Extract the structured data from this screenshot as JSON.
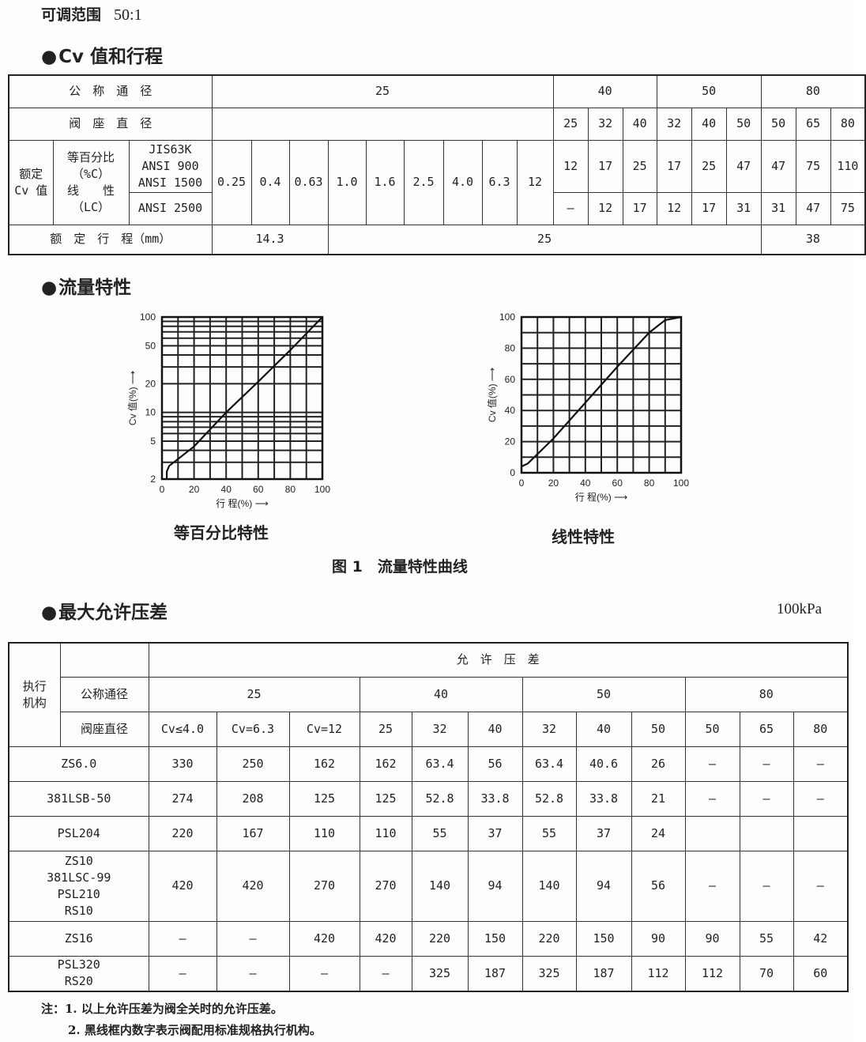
{
  "range": {
    "label": "可调范围",
    "value": "50:1"
  },
  "cv_section": {
    "title": "Cv 值和行程",
    "rows": [
      [
        {
          "t": "公　称　通　径",
          "cs": 3
        },
        {
          "t": "25",
          "cs": 9
        },
        {
          "t": "40",
          "cs": 3
        },
        {
          "t": "50",
          "cs": 3
        },
        {
          "t": "80",
          "cs": 3
        }
      ],
      [
        {
          "t": "阀　座　直　径",
          "cs": 3
        },
        {
          "t": "",
          "cs": 9
        },
        {
          "t": "25"
        },
        {
          "t": "32"
        },
        {
          "t": "40"
        },
        {
          "t": "32"
        },
        {
          "t": "40"
        },
        {
          "t": "50"
        },
        {
          "t": "50"
        },
        {
          "t": "65"
        },
        {
          "t": "80"
        }
      ],
      [
        {
          "t": "额定\nCv 值",
          "rs": 2
        },
        {
          "t": "等百分比\n（%C）\n线　　性\n（LC）",
          "rs": 2
        },
        {
          "t": "JIS63K\nANSI 900\nANSI 1500"
        },
        {
          "t": "0.25",
          "rs": 2
        },
        {
          "t": "0.4",
          "rs": 2
        },
        {
          "t": "0.63",
          "rs": 2
        },
        {
          "t": "1.0",
          "rs": 2
        },
        {
          "t": "1.6",
          "rs": 2
        },
        {
          "t": "2.5",
          "rs": 2
        },
        {
          "t": "4.0",
          "rs": 2
        },
        {
          "t": "6.3",
          "rs": 2
        },
        {
          "t": "12",
          "rs": 2
        },
        {
          "t": "12"
        },
        {
          "t": "17"
        },
        {
          "t": "25"
        },
        {
          "t": "17"
        },
        {
          "t": "25"
        },
        {
          "t": "47"
        },
        {
          "t": "47"
        },
        {
          "t": "75"
        },
        {
          "t": "110"
        }
      ],
      [
        {
          "t": "ANSI 2500"
        },
        {
          "t": "—"
        },
        {
          "t": "12"
        },
        {
          "t": "17"
        },
        {
          "t": "12"
        },
        {
          "t": "17"
        },
        {
          "t": "31"
        },
        {
          "t": "31"
        },
        {
          "t": "47"
        },
        {
          "t": "75"
        }
      ],
      [
        {
          "t": "额　定　行　程（mm）",
          "cs": 3
        },
        {
          "t": "14.3",
          "cs": 3
        },
        {
          "t": "25",
          "cs": 12
        },
        {
          "t": "38",
          "cs": 3
        }
      ]
    ]
  },
  "flow_section": {
    "title": "流量特性",
    "figure_caption": "图 1　流量特性曲线",
    "charts": [
      {
        "caption": "等百分比特性",
        "type": "line",
        "y_scale": "log",
        "ylim": [
          2,
          100
        ],
        "xlim": [
          0,
          100
        ],
        "ylabel": "Cv 值(%) ⟶",
        "xlabel": "行 程(%) ⟶",
        "yticks": [
          2,
          5,
          10,
          20,
          50,
          100
        ],
        "xticks": [
          0,
          20,
          40,
          60,
          80,
          100
        ],
        "grid": true,
        "points": [
          [
            3,
            2
          ],
          [
            3,
            2.4
          ],
          [
            4.5,
            2.75
          ],
          [
            20,
            4.4
          ],
          [
            40,
            10
          ],
          [
            60,
            21
          ],
          [
            80,
            45
          ],
          [
            100,
            100
          ]
        ]
      },
      {
        "caption": "线性特性",
        "type": "line",
        "y_scale": "linear",
        "ylim": [
          0,
          100
        ],
        "xlim": [
          0,
          100
        ],
        "ylabel": "Cv 值(%) ⟶",
        "xlabel": "行 程(%) ⟶",
        "yticks": [
          0,
          20,
          40,
          60,
          80,
          100
        ],
        "xticks": [
          0,
          20,
          40,
          60,
          80,
          100
        ],
        "grid": true,
        "points": [
          [
            0,
            4
          ],
          [
            4,
            6
          ],
          [
            20,
            22
          ],
          [
            40,
            45
          ],
          [
            60,
            68
          ],
          [
            80,
            90
          ],
          [
            90,
            98
          ],
          [
            100,
            100
          ]
        ]
      }
    ]
  },
  "dp_section": {
    "title": "最大允许压差",
    "unit": "100kPa",
    "rows": [
      [
        {
          "t": "执行\n机构",
          "rs": 3
        },
        {
          "t": ""
        },
        {
          "t": "允　许　压　差",
          "cs": 12
        }
      ],
      [
        {
          "t": "公称通径"
        },
        {
          "t": "25",
          "cs": 3
        },
        {
          "t": "40",
          "cs": 3
        },
        {
          "t": "50",
          "cs": 3
        },
        {
          "t": "80",
          "cs": 3
        }
      ],
      [
        {
          "t": "阀座直径"
        },
        {
          "t": "Cv≤4.0"
        },
        {
          "t": "Cv=6.3"
        },
        {
          "t": "Cv=12"
        },
        {
          "t": "25"
        },
        {
          "t": "32"
        },
        {
          "t": "40"
        },
        {
          "t": "32"
        },
        {
          "t": "40"
        },
        {
          "t": "50"
        },
        {
          "t": "50"
        },
        {
          "t": "65"
        },
        {
          "t": "80"
        }
      ],
      [
        {
          "t": "ZS6.0",
          "cs": 2
        },
        {
          "t": "330"
        },
        {
          "t": "250"
        },
        {
          "t": "162"
        },
        {
          "t": "162"
        },
        {
          "t": "63.4"
        },
        {
          "t": "56"
        },
        {
          "t": "63.4"
        },
        {
          "t": "40.6"
        },
        {
          "t": "26"
        },
        {
          "t": "—"
        },
        {
          "t": "—"
        },
        {
          "t": "—"
        }
      ],
      [
        {
          "t": "381LSB-50",
          "cs": 2
        },
        {
          "t": "274"
        },
        {
          "t": "208"
        },
        {
          "t": "125"
        },
        {
          "t": "125"
        },
        {
          "t": "52.8"
        },
        {
          "t": "33.8"
        },
        {
          "t": "52.8"
        },
        {
          "t": "33.8"
        },
        {
          "t": "21"
        },
        {
          "t": "—"
        },
        {
          "t": "—"
        },
        {
          "t": "—"
        }
      ],
      [
        {
          "t": "PSL204",
          "cs": 2
        },
        {
          "t": "220"
        },
        {
          "t": "167"
        },
        {
          "t": "110"
        },
        {
          "t": "110"
        },
        {
          "t": "55"
        },
        {
          "t": "37"
        },
        {
          "t": "55"
        },
        {
          "t": "37"
        },
        {
          "t": "24"
        },
        {
          "t": ""
        },
        {
          "t": ""
        },
        {
          "t": ""
        }
      ],
      [
        {
          "t": "ZS10\n381LSC-99\nPSL210\nRS10",
          "cs": 2
        },
        {
          "t": "420"
        },
        {
          "t": "420"
        },
        {
          "t": "270"
        },
        {
          "t": "270"
        },
        {
          "t": "140"
        },
        {
          "t": "94"
        },
        {
          "t": "140"
        },
        {
          "t": "94"
        },
        {
          "t": "56"
        },
        {
          "t": "—"
        },
        {
          "t": "—"
        },
        {
          "t": "—"
        }
      ],
      [
        {
          "t": "ZS16",
          "cs": 2
        },
        {
          "t": "—"
        },
        {
          "t": "—"
        },
        {
          "t": "420"
        },
        {
          "t": "420"
        },
        {
          "t": "220"
        },
        {
          "t": "150"
        },
        {
          "t": "220"
        },
        {
          "t": "150"
        },
        {
          "t": "90"
        },
        {
          "t": "90"
        },
        {
          "t": "55"
        },
        {
          "t": "42"
        }
      ],
      [
        {
          "t": "PSL320\nRS20",
          "cs": 2
        },
        {
          "t": "—"
        },
        {
          "t": "—"
        },
        {
          "t": "—"
        },
        {
          "t": "—"
        },
        {
          "t": "325"
        },
        {
          "t": "187"
        },
        {
          "t": "325"
        },
        {
          "t": "187"
        },
        {
          "t": "112"
        },
        {
          "t": "112"
        },
        {
          "t": "70"
        },
        {
          "t": "60"
        }
      ]
    ],
    "notes": [
      "注：1.  以上允许压差为阀全关时的允许压差。",
      "2.  黑线框内数字表示阀配用标准规格执行机构。"
    ]
  }
}
